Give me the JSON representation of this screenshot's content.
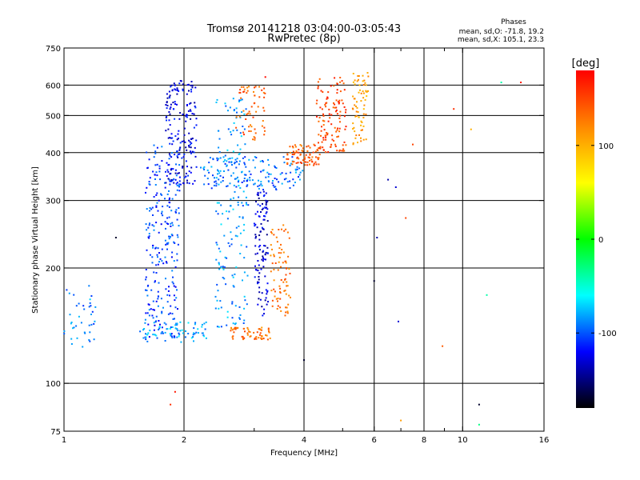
{
  "chart_data": {
    "type": "scatter",
    "title": "Tromsø 20141218 03:04:00-03:05:43",
    "subtitle": "RwPretec (8p)",
    "xlabel": "Frequency [MHz]",
    "ylabel": "Stationary phase Virtual Height [km]",
    "x_scale": "log",
    "y_scale": "log",
    "xlim": [
      1,
      16
    ],
    "ylim": [
      75,
      750
    ],
    "x_ticks": [
      1,
      2,
      4,
      6,
      8,
      10,
      16
    ],
    "x_tick_labels": [
      "1",
      "2",
      "4",
      "6",
      "8",
      "10",
      "16"
    ],
    "x_minor_ticks": [
      3,
      5,
      7,
      9
    ],
    "y_ticks": [
      75,
      100,
      200,
      300,
      400,
      500,
      600,
      750
    ],
    "y_tick_labels": [
      "75",
      "100",
      "200",
      "300",
      "400",
      "500",
      "600",
      "750"
    ],
    "grid": true,
    "phase_stats": {
      "heading": "Phases",
      "line1": "mean, sd,O: -71.8, 19.2",
      "line2": "mean, sd,X: 105.1, 23.3"
    },
    "colorbar": {
      "label": "[deg]",
      "range": [
        -180,
        180
      ],
      "ticks": [
        100,
        0,
        -100
      ],
      "tick_labels": [
        "100",
        "0",
        "-100"
      ],
      "stops": [
        "#ff0000",
        "#ff8800",
        "#ffff00",
        "#00ff00",
        "#00ffff",
        "#0000ff",
        "#000000"
      ]
    },
    "traces": [
      {
        "f0": 1.0,
        "f1": 1.2,
        "h0": 120,
        "h1": 180,
        "phase": -90,
        "n": 40
      },
      {
        "f0": 1.6,
        "f1": 1.95,
        "h0": 130,
        "h1": 420,
        "phase": -105,
        "n": 260
      },
      {
        "f0": 1.55,
        "f1": 2.3,
        "h0": 128,
        "h1": 145,
        "phase": -80,
        "n": 70
      },
      {
        "f0": 1.8,
        "f1": 2.15,
        "h0": 330,
        "h1": 620,
        "phase": -125,
        "n": 180
      },
      {
        "f0": 2.4,
        "f1": 2.9,
        "h0": 140,
        "h1": 560,
        "phase": -85,
        "n": 170
      },
      {
        "f0": 2.6,
        "f1": 3.3,
        "h0": 130,
        "h1": 140,
        "phase": 130,
        "n": 60
      },
      {
        "f0": 3.0,
        "f1": 3.25,
        "h0": 150,
        "h1": 320,
        "phase": -130,
        "n": 110
      },
      {
        "f0": 2.7,
        "f1": 3.2,
        "h0": 430,
        "h1": 600,
        "phase": 140,
        "n": 60
      },
      {
        "f0": 3.3,
        "f1": 3.7,
        "h0": 150,
        "h1": 260,
        "phase": 130,
        "n": 80
      },
      {
        "f0": 2.2,
        "f1": 4.0,
        "h0": 320,
        "h1": 390,
        "phase": -95,
        "n": 150
      },
      {
        "f0": 3.6,
        "f1": 4.4,
        "h0": 370,
        "h1": 420,
        "phase": 140,
        "n": 80
      },
      {
        "f0": 4.3,
        "f1": 5.1,
        "h0": 400,
        "h1": 630,
        "phase": 150,
        "n": 120
      },
      {
        "f0": 5.3,
        "f1": 5.8,
        "h0": 420,
        "h1": 650,
        "phase": 110,
        "n": 70
      }
    ],
    "outliers": [
      {
        "x": 1.85,
        "y": 88,
        "phase": 160
      },
      {
        "x": 1.9,
        "y": 95,
        "phase": 170
      },
      {
        "x": 3.2,
        "y": 630,
        "phase": 175
      },
      {
        "x": 6.8,
        "y": 325,
        "phase": -130
      },
      {
        "x": 6.5,
        "y": 340,
        "phase": -140
      },
      {
        "x": 6.1,
        "y": 240,
        "phase": -140
      },
      {
        "x": 6.0,
        "y": 185,
        "phase": -170
      },
      {
        "x": 7.2,
        "y": 270,
        "phase": 150
      },
      {
        "x": 7.5,
        "y": 420,
        "phase": 150
      },
      {
        "x": 9.5,
        "y": 520,
        "phase": 160
      },
      {
        "x": 8.9,
        "y": 125,
        "phase": 140
      },
      {
        "x": 11.0,
        "y": 88,
        "phase": -170
      },
      {
        "x": 11.0,
        "y": 78,
        "phase": -30
      },
      {
        "x": 11.5,
        "y": 170,
        "phase": -40
      },
      {
        "x": 12.5,
        "y": 610,
        "phase": -40
      },
      {
        "x": 14.0,
        "y": 610,
        "phase": 170
      },
      {
        "x": 10.5,
        "y": 460,
        "phase": 100
      },
      {
        "x": 7.0,
        "y": 80,
        "phase": 110
      },
      {
        "x": 4.0,
        "y": 115,
        "phase": -170
      },
      {
        "x": 6.9,
        "y": 145,
        "phase": -130
      },
      {
        "x": 1.35,
        "y": 240,
        "phase": -170
      }
    ]
  }
}
